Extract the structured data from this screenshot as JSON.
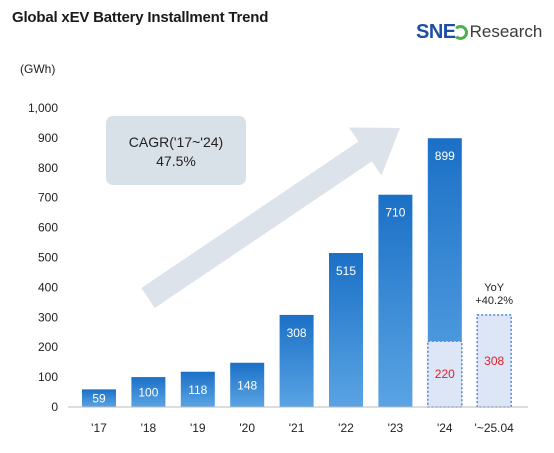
{
  "title": "Global xEV Battery Installment Trend",
  "unit": "(GWh)",
  "logo": {
    "brand": "SNE",
    "suffix": "Research"
  },
  "colors": {
    "bar_top": "#1b70c6",
    "bar_bottom": "#5aa4e4",
    "partial_fill": "#dde6f7",
    "partial_border": "#5a8ed6",
    "partial_label": "#e0202a",
    "arrow": "#d7dee6",
    "cagr_box": "#d9e1e8"
  },
  "cagr": {
    "line1": "CAGR('17~'24)",
    "line2": "47.5%"
  },
  "yoy": {
    "line1": "YoY",
    "line2": "+40.2%"
  },
  "chart_data": {
    "type": "bar",
    "categories": [
      "'17",
      "'18",
      "'19",
      "'20",
      "'21",
      "'22",
      "'23",
      "'24",
      "'~25.04"
    ],
    "values": [
      59,
      100,
      118,
      148,
      308,
      515,
      710,
      899,
      null
    ],
    "partial": {
      "'24": 220,
      "'~25.04": 308
    },
    "ylim": [
      0,
      1000
    ],
    "yticks": [
      "0",
      "100",
      "200",
      "300",
      "400",
      "500",
      "600",
      "700",
      "800",
      "900",
      "1,000"
    ],
    "ylabel": "(GWh)",
    "grid": false
  }
}
